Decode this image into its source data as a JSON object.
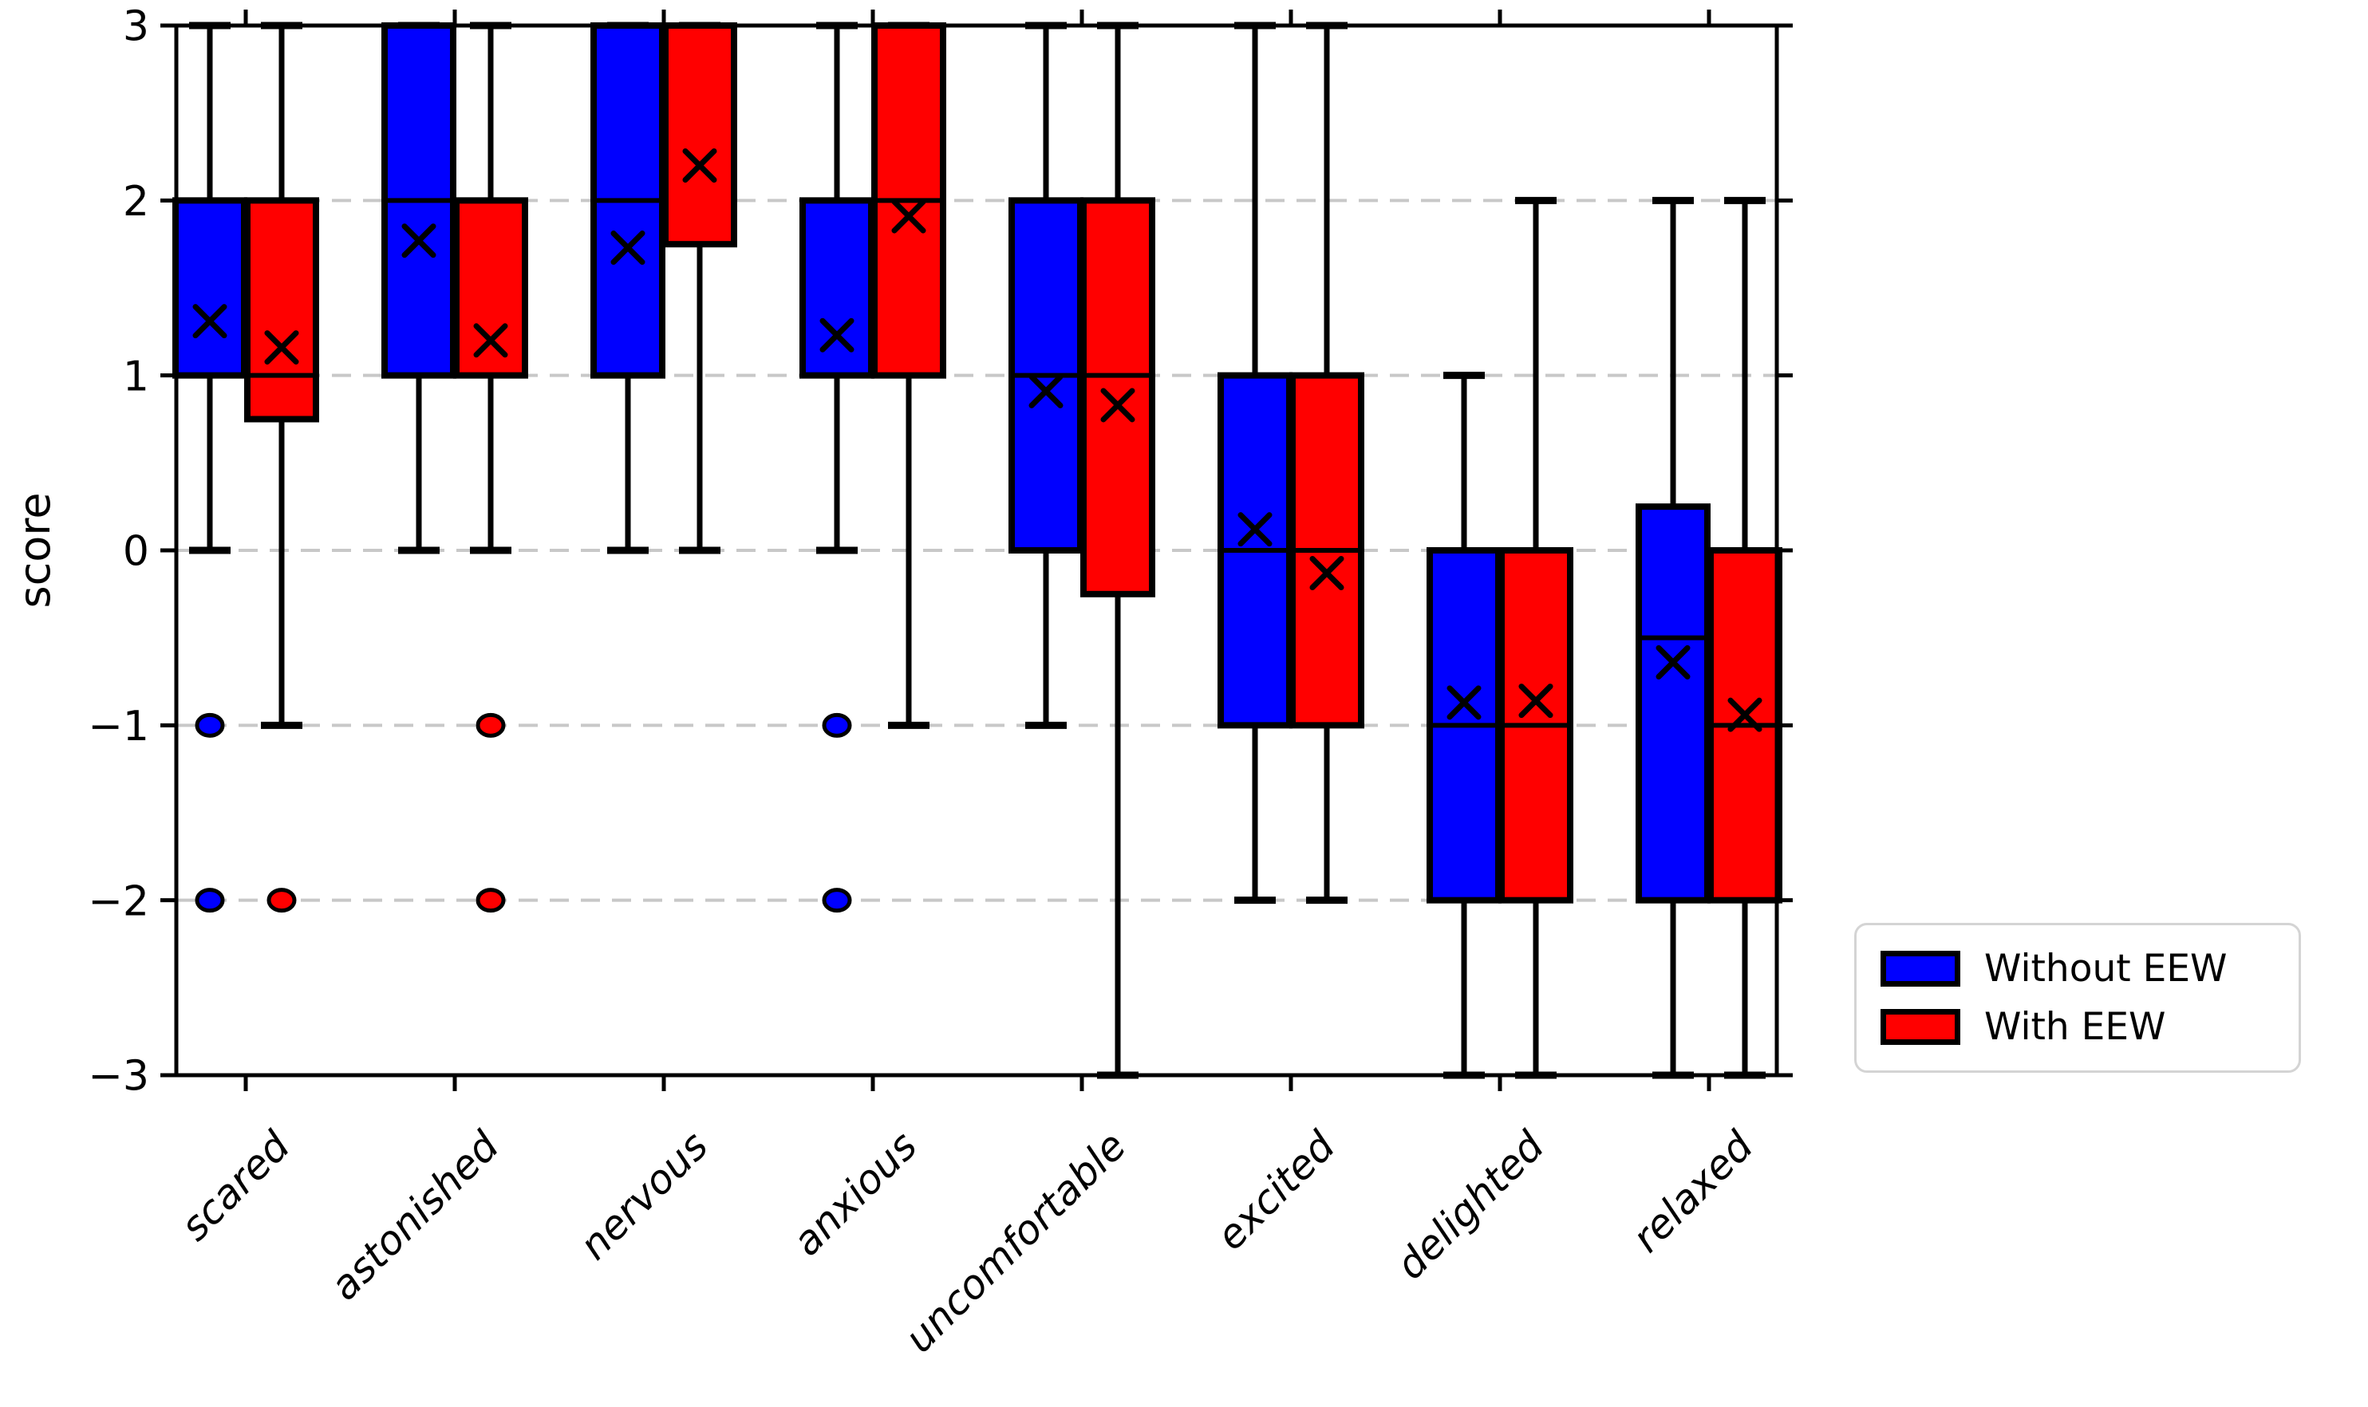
{
  "chart_data": {
    "type": "boxplot",
    "title": "",
    "xlabel": "",
    "ylabel": "score",
    "ylim": [
      -3,
      3
    ],
    "ytick_labels": [
      "3",
      "2",
      "1",
      "0",
      "−1",
      "−2",
      "−3"
    ],
    "ytick_values": [
      3,
      2,
      1,
      0,
      -1,
      -2,
      -3
    ],
    "gridlines_at": [
      2,
      1,
      0,
      -1,
      -2
    ],
    "grid_style": "dashed-horizontal",
    "grid_color": "#c8c8c8",
    "categories": [
      "scared",
      "astonished",
      "nervous",
      "anxious",
      "uncomfortable",
      "excited",
      "delighted",
      "relaxed"
    ],
    "legend_position": "outside-lower-right",
    "mean_marker": "x",
    "outlier_marker": "circle",
    "series": [
      {
        "name": "Without EEW",
        "color": "#0000ff",
        "boxes": [
          {
            "category": "scared",
            "whislo": 0,
            "q1": 1,
            "med": 1,
            "q3": 2,
            "whishi": 3,
            "mean": 1.31,
            "fliers": [
              -1,
              -2
            ]
          },
          {
            "category": "astonished",
            "whislo": 0,
            "q1": 1,
            "med": 2,
            "q3": 3,
            "whishi": 3,
            "mean": 1.77,
            "fliers": []
          },
          {
            "category": "nervous",
            "whislo": 0,
            "q1": 1,
            "med": 2,
            "q3": 3,
            "whishi": 3,
            "mean": 1.73,
            "fliers": []
          },
          {
            "category": "anxious",
            "whislo": 0,
            "q1": 1,
            "med": 1,
            "q3": 2,
            "whishi": 3,
            "mean": 1.23,
            "fliers": [
              -1,
              -2
            ]
          },
          {
            "category": "uncomfortable",
            "whislo": -1,
            "q1": 0,
            "med": 1,
            "q3": 2,
            "whishi": 3,
            "mean": 0.91,
            "fliers": []
          },
          {
            "category": "excited",
            "whislo": -2,
            "q1": -1,
            "med": 0,
            "q3": 1,
            "whishi": 3,
            "mean": 0.12,
            "fliers": []
          },
          {
            "category": "delighted",
            "whislo": -3,
            "q1": -2,
            "med": -1,
            "q3": 0,
            "whishi": 1,
            "mean": -0.87,
            "fliers": []
          },
          {
            "category": "relaxed",
            "whislo": -3,
            "q1": -2,
            "med": -0.5,
            "q3": 0.25,
            "whishi": 2,
            "mean": -0.64,
            "fliers": []
          }
        ]
      },
      {
        "name": "With EEW",
        "color": "#ff0000",
        "boxes": [
          {
            "category": "scared",
            "whislo": -1,
            "q1": 0.75,
            "med": 1,
            "q3": 2,
            "whishi": 3,
            "mean": 1.16,
            "fliers": [
              -2
            ]
          },
          {
            "category": "astonished",
            "whislo": 0,
            "q1": 1,
            "med": 2,
            "q3": 2,
            "whishi": 3,
            "mean": 1.2,
            "fliers": [
              -1,
              -2
            ]
          },
          {
            "category": "nervous",
            "whislo": 0,
            "q1": 1.75,
            "med": 3,
            "q3": 3,
            "whishi": 3,
            "mean": 2.2,
            "fliers": []
          },
          {
            "category": "anxious",
            "whislo": -1,
            "q1": 1,
            "med": 2,
            "q3": 3,
            "whishi": 3,
            "mean": 1.91,
            "fliers": []
          },
          {
            "category": "uncomfortable",
            "whislo": -3,
            "q1": -0.25,
            "med": 1,
            "q3": 2,
            "whishi": 3,
            "mean": 0.83,
            "fliers": []
          },
          {
            "category": "excited",
            "whislo": -2,
            "q1": -1,
            "med": 0,
            "q3": 1,
            "whishi": 3,
            "mean": -0.13,
            "fliers": []
          },
          {
            "category": "delighted",
            "whislo": -3,
            "q1": -2,
            "med": -1,
            "q3": 0,
            "whishi": 2,
            "mean": -0.86,
            "fliers": []
          },
          {
            "category": "relaxed",
            "whislo": -3,
            "q1": -2,
            "med": -1,
            "q3": 0,
            "whishi": 2,
            "mean": -0.94,
            "fliers": []
          }
        ]
      }
    ]
  }
}
